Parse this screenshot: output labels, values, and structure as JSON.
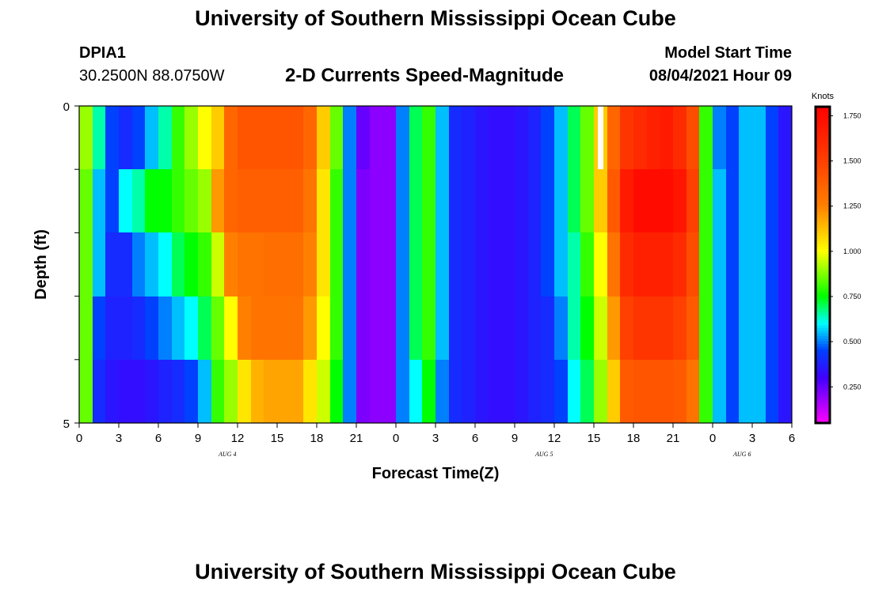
{
  "header": {
    "title": "University of Southern Mississippi Ocean Cube",
    "station_id": "DPIA1",
    "station_coords": "30.2500N  88.0750W",
    "chart_title": "2-D Currents Speed-Magnitude",
    "model_start_label": "Model Start Time",
    "model_start_value": "08/04/2021 Hour 09"
  },
  "footer": {
    "title": "University of Southern Mississippi Ocean Cube"
  },
  "chart_data": {
    "type": "heatmap",
    "title": "2-D Currents Speed-Magnitude",
    "xlabel": "Forecast Time(Z)",
    "ylabel": "Depth (ft)",
    "x_ticks": [
      "0",
      "3",
      "6",
      "9",
      "12",
      "15",
      "18",
      "21",
      "0",
      "3",
      "6",
      "9",
      "12",
      "15",
      "18",
      "21",
      "0",
      "3",
      "6"
    ],
    "date_labels": [
      {
        "label": "AUG 4",
        "hour_index": 12
      },
      {
        "label": "AUG 5",
        "hour_index": 36
      },
      {
        "label": "AUG 6",
        "hour_index": 51
      }
    ],
    "y_tick_labels": [
      "0",
      "5"
    ],
    "ylim": [
      0,
      5
    ],
    "hours": 54,
    "depth_levels": 5,
    "colorbar": {
      "unit": "Knots",
      "ticks": [
        "1.750",
        "1.500",
        "1.250",
        "1.000",
        "0.750",
        "0.500",
        "0.250"
      ],
      "tick_values": [
        1.75,
        1.5,
        1.25,
        1.0,
        0.75,
        0.5,
        0.25
      ],
      "range": [
        0.05,
        1.8
      ],
      "stops": [
        {
          "v": 0.05,
          "c": "#ff00ff"
        },
        {
          "v": 0.3,
          "c": "#4000ff"
        },
        {
          "v": 0.45,
          "c": "#0040ff"
        },
        {
          "v": 0.6,
          "c": "#00ffff"
        },
        {
          "v": 0.75,
          "c": "#00ff00"
        },
        {
          "v": 1.0,
          "c": "#ffff00"
        },
        {
          "v": 1.25,
          "c": "#ff8000"
        },
        {
          "v": 1.5,
          "c": "#ff4000"
        },
        {
          "v": 1.8,
          "c": "#ff0000"
        }
      ]
    },
    "missing_value_cell": {
      "hour_index": 39,
      "depth_row": 0
    },
    "values": [
      [
        0.9,
        0.65,
        0.45,
        0.4,
        0.45,
        0.55,
        0.65,
        0.8,
        0.9,
        1.0,
        1.1,
        1.35,
        1.42,
        1.42,
        1.42,
        1.42,
        1.42,
        1.35,
        1.1,
        0.85,
        0.5,
        0.25,
        0.2,
        0.2,
        0.5,
        0.7,
        0.8,
        0.55,
        0.4,
        0.38,
        0.35,
        0.33,
        0.33,
        0.35,
        0.38,
        0.45,
        0.55,
        0.7,
        0.85,
        1.1,
        1.35,
        1.55,
        1.6,
        1.65,
        1.68,
        1.6,
        1.45,
        0.8,
        0.5,
        0.45,
        0.55,
        0.55,
        0.45,
        0.35
      ],
      [
        0.85,
        0.55,
        0.45,
        0.6,
        0.65,
        0.75,
        0.75,
        0.8,
        0.85,
        0.9,
        1.2,
        1.35,
        1.38,
        1.38,
        1.38,
        1.38,
        1.38,
        1.3,
        1.05,
        0.8,
        0.5,
        0.22,
        0.2,
        0.2,
        0.5,
        0.7,
        0.8,
        0.55,
        0.4,
        0.38,
        0.35,
        0.33,
        0.33,
        0.35,
        0.38,
        0.45,
        0.55,
        0.7,
        0.85,
        1.1,
        1.4,
        1.68,
        1.75,
        1.75,
        1.75,
        1.7,
        1.5,
        0.8,
        0.55,
        0.45,
        0.55,
        0.55,
        0.45,
        0.35
      ],
      [
        0.85,
        0.55,
        0.4,
        0.4,
        0.5,
        0.55,
        0.6,
        0.7,
        0.75,
        0.8,
        0.95,
        1.25,
        1.3,
        1.3,
        1.32,
        1.32,
        1.32,
        1.25,
        1.05,
        0.8,
        0.5,
        0.22,
        0.2,
        0.2,
        0.5,
        0.7,
        0.8,
        0.55,
        0.4,
        0.38,
        0.35,
        0.33,
        0.33,
        0.35,
        0.38,
        0.45,
        0.55,
        0.65,
        0.8,
        1.0,
        1.3,
        1.6,
        1.65,
        1.65,
        1.65,
        1.6,
        1.45,
        0.8,
        0.55,
        0.45,
        0.55,
        0.55,
        0.45,
        0.35
      ],
      [
        0.85,
        0.45,
        0.38,
        0.38,
        0.4,
        0.45,
        0.5,
        0.55,
        0.6,
        0.7,
        0.85,
        1.0,
        1.25,
        1.3,
        1.3,
        1.3,
        1.3,
        1.2,
        1.0,
        0.8,
        0.5,
        0.22,
        0.2,
        0.2,
        0.5,
        0.7,
        0.8,
        0.55,
        0.4,
        0.38,
        0.35,
        0.33,
        0.33,
        0.35,
        0.38,
        0.4,
        0.5,
        0.65,
        0.75,
        0.95,
        1.2,
        1.5,
        1.55,
        1.55,
        1.55,
        1.5,
        1.4,
        0.8,
        0.55,
        0.45,
        0.55,
        0.55,
        0.45,
        0.35
      ],
      [
        0.85,
        0.4,
        0.35,
        0.33,
        0.33,
        0.35,
        0.38,
        0.4,
        0.45,
        0.55,
        0.8,
        0.9,
        1.05,
        1.15,
        1.18,
        1.18,
        1.18,
        1.05,
        0.95,
        0.75,
        0.5,
        0.22,
        0.2,
        0.2,
        0.5,
        0.6,
        0.75,
        0.5,
        0.4,
        0.38,
        0.35,
        0.33,
        0.33,
        0.35,
        0.38,
        0.4,
        0.45,
        0.6,
        0.7,
        0.9,
        1.1,
        1.4,
        1.42,
        1.42,
        1.42,
        1.4,
        1.3,
        0.8,
        0.55,
        0.45,
        0.55,
        0.55,
        0.45,
        0.35
      ]
    ]
  }
}
